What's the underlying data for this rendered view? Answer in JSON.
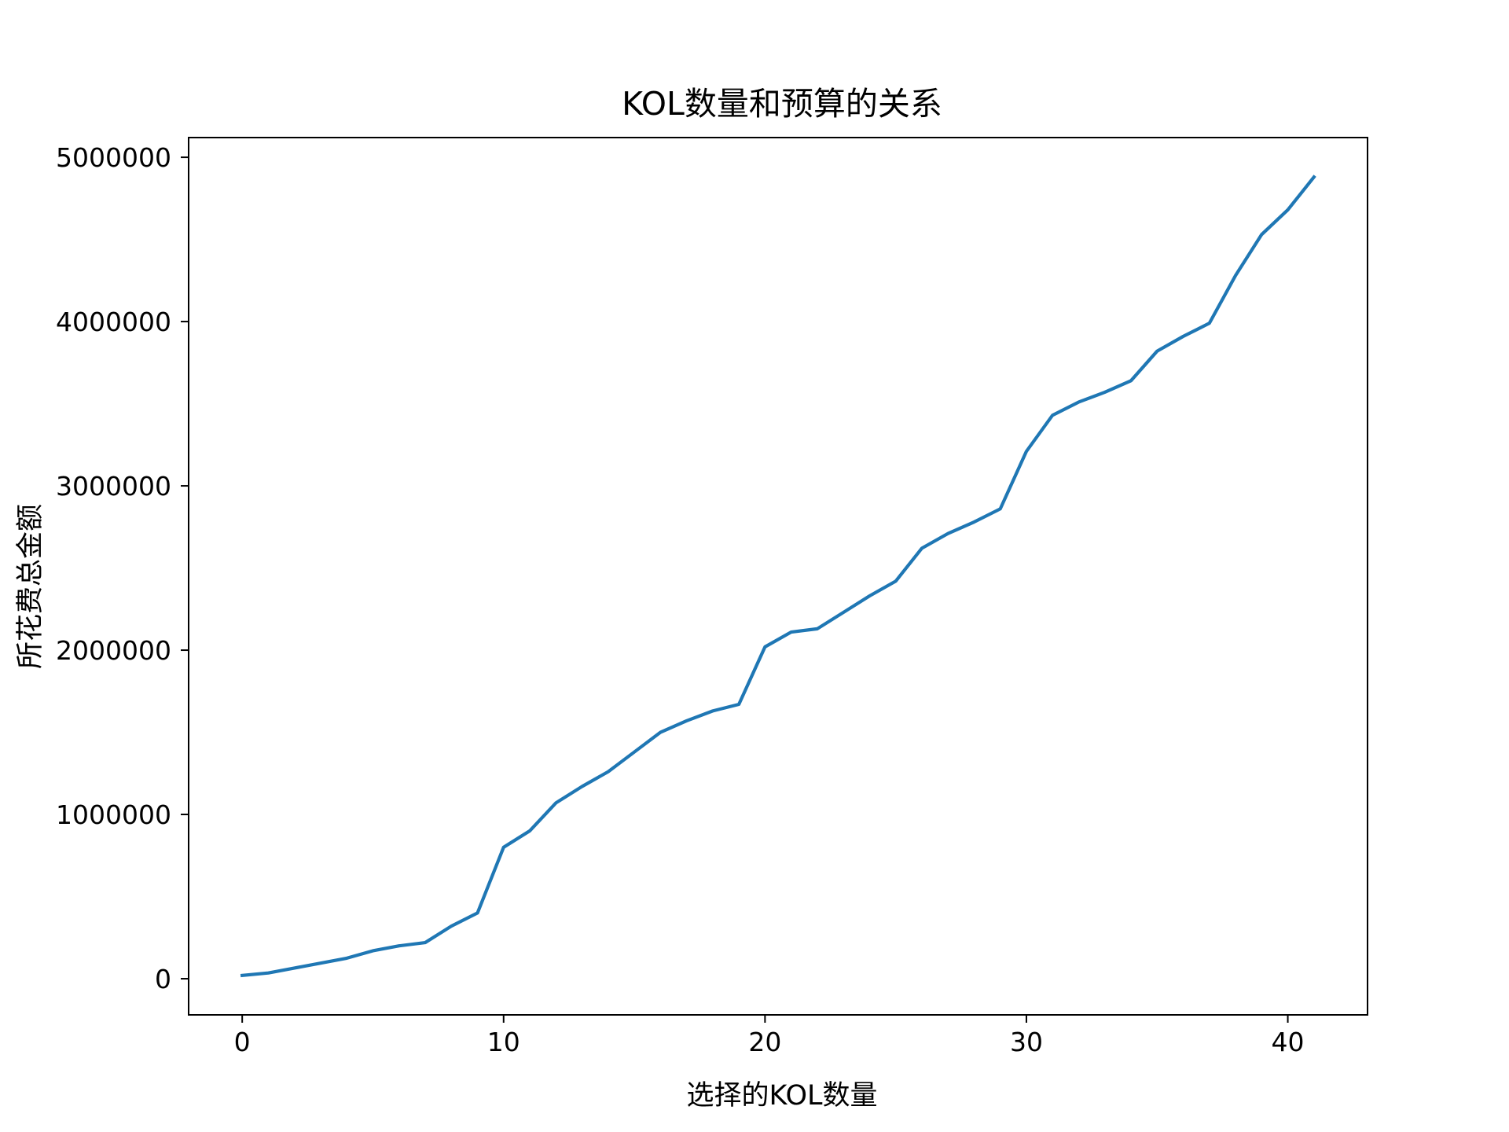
{
  "chart_data": {
    "type": "line",
    "title": "KOL数量和预算的关系",
    "xlabel": "选择的KOL数量",
    "ylabel": "所花费总金额",
    "xlim": [
      -2.05,
      43.05
    ],
    "ylim": [
      -220000,
      5120000
    ],
    "xticks": [
      0,
      10,
      20,
      30,
      40
    ],
    "yticks": [
      0,
      1000000,
      2000000,
      3000000,
      4000000,
      5000000
    ],
    "grid": false,
    "legend": "none",
    "series": [
      {
        "color": "#1f77b4",
        "x": [
          0,
          1,
          2,
          3,
          4,
          5,
          6,
          7,
          8,
          9,
          10,
          11,
          12,
          13,
          14,
          15,
          16,
          17,
          18,
          19,
          20,
          21,
          22,
          23,
          24,
          25,
          26,
          27,
          28,
          29,
          30,
          31,
          32,
          33,
          34,
          35,
          36,
          37,
          38,
          39,
          40,
          41
        ],
        "y": [
          20000,
          35000,
          65000,
          95000,
          125000,
          170000,
          200000,
          220000,
          320000,
          400000,
          800000,
          900000,
          1070000,
          1170000,
          1260000,
          1380000,
          1500000,
          1570000,
          1630000,
          1670000,
          2020000,
          2110000,
          2130000,
          2230000,
          2330000,
          2420000,
          2620000,
          2710000,
          2780000,
          2860000,
          3210000,
          3430000,
          3510000,
          3570000,
          3640000,
          3820000,
          3910000,
          3990000,
          4280000,
          4530000,
          4680000,
          4880000
        ]
      }
    ]
  }
}
